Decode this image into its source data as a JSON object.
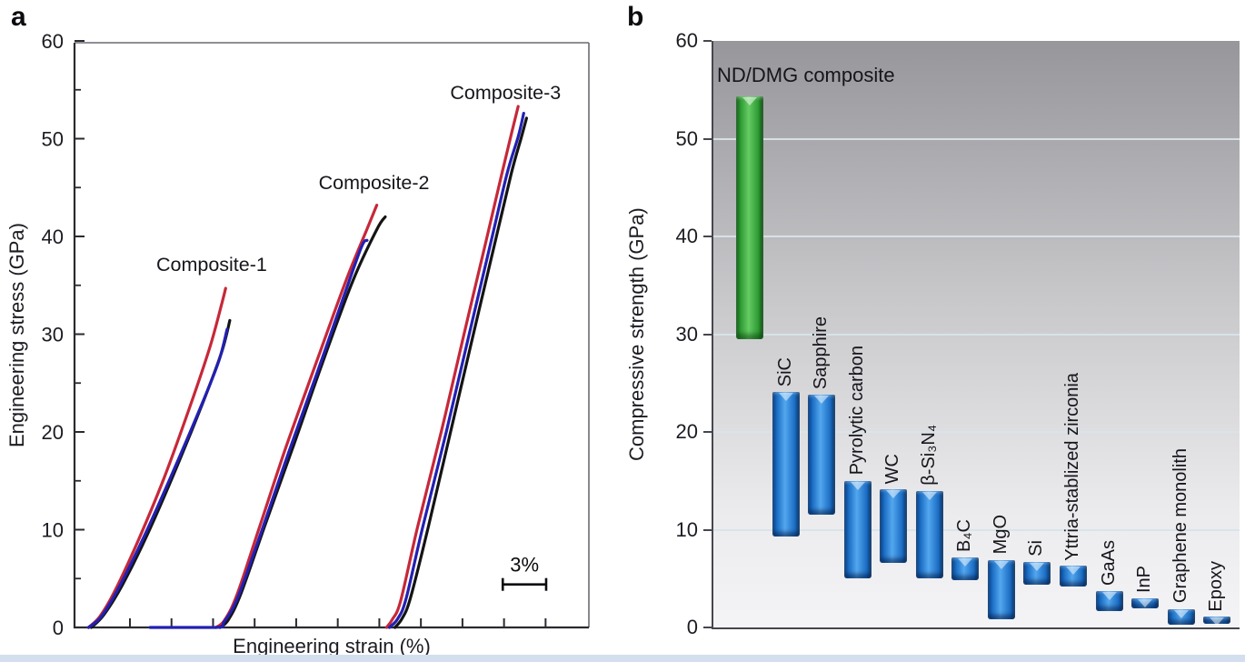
{
  "panels": {
    "a": {
      "letter": "a",
      "xlabel": "Engineering strain (%)",
      "ylabel": "Engineering stress (GPa)"
    },
    "b": {
      "letter": "b",
      "ylabel": "Compressive strength (GPa)"
    }
  },
  "colors": {
    "curve_red": "#c62839",
    "curve_blue": "#2320b2",
    "curve_black": "#141414",
    "axis_dark": "#2a2a30",
    "axis_gray": "#6a6a72",
    "text": "#1b1b22"
  },
  "chart_data": [
    {
      "id": "panel-a",
      "type": "line",
      "xlabel": "Engineering strain (%)",
      "ylabel": "Engineering stress (GPa)",
      "ylim": [
        0,
        60
      ],
      "yticks_major": [
        0,
        10,
        20,
        30,
        40,
        50,
        60
      ],
      "yticks_minor": [
        5,
        15,
        25,
        35,
        45,
        55
      ],
      "xlim": [
        0,
        36.7
      ],
      "xticks_unlabeled": [
        3.96,
        6.93,
        9.9,
        12.87,
        15.84,
        18.81,
        21.78,
        24.75,
        27.72,
        30.69,
        33.66
      ],
      "grid": false,
      "x_axis_note": "x ticks unlabeled; strain indicated by 3% scale bar; curve groups offset along x",
      "scalebar": {
        "label": "3%",
        "x_start": 30.6,
        "x_end": 33.7,
        "y": 4.4
      },
      "annotations": [
        {
          "text": "Composite-1",
          "x": 9.8,
          "y": 37.1
        },
        {
          "text": "Composite-2",
          "x": 21.4,
          "y": 45.5
        },
        {
          "text": "Composite-3",
          "x": 30.8,
          "y": 54.7
        }
      ],
      "series": [
        {
          "name": "composite-1-red",
          "group": "Composite-1",
          "color_key": "curve_red",
          "points": [
            [
              1.0,
              0
            ],
            [
              1.8,
              1.1
            ],
            [
              2.8,
              3.5
            ],
            [
              4.4,
              8.4
            ],
            [
              6.4,
              15.3
            ],
            [
              8.3,
              22.8
            ],
            [
              9.7,
              28.8
            ],
            [
              10.5,
              33.0
            ],
            [
              10.8,
              34.7
            ]
          ]
        },
        {
          "name": "composite-1-black",
          "group": "Composite-1",
          "color_key": "curve_black",
          "points": [
            [
              1.2,
              0
            ],
            [
              2.1,
              1.3
            ],
            [
              3.4,
              4.3
            ],
            [
              5.2,
              9.5
            ],
            [
              7.3,
              16.4
            ],
            [
              9.2,
              23.1
            ],
            [
              10.5,
              28.1
            ],
            [
              11.1,
              31.4
            ]
          ]
        },
        {
          "name": "composite-1-blue",
          "group": "Composite-1",
          "color_key": "curve_blue",
          "points": [
            [
              1.0,
              0
            ],
            [
              1.9,
              1.1
            ],
            [
              3.1,
              3.9
            ],
            [
              4.9,
              9.1
            ],
            [
              7.0,
              15.8
            ],
            [
              9.0,
              22.5
            ],
            [
              10.3,
              27.2
            ],
            [
              10.9,
              30.5
            ]
          ]
        },
        {
          "name": "composite-2-red",
          "group": "Composite-2",
          "color_key": "curve_red",
          "points": [
            [
              10.1,
              0
            ],
            [
              10.7,
              0.7
            ],
            [
              11.6,
              3.3
            ],
            [
              13.2,
              10.2
            ],
            [
              15.1,
              18.4
            ],
            [
              17.3,
              27.2
            ],
            [
              19.4,
              35.5
            ],
            [
              21.0,
              41.1
            ],
            [
              21.6,
              43.2
            ]
          ]
        },
        {
          "name": "composite-2-black",
          "group": "Composite-2",
          "color_key": "curve_black",
          "points": [
            [
              10.4,
              0
            ],
            [
              11.0,
              0.8
            ],
            [
              11.9,
              3.5
            ],
            [
              13.6,
              10.4
            ],
            [
              15.6,
              18.4
            ],
            [
              17.7,
              27.0
            ],
            [
              19.9,
              35.5
            ],
            [
              21.6,
              40.7
            ],
            [
              22.2,
              42.0
            ]
          ]
        },
        {
          "name": "composite-2-blue",
          "group": "Composite-2",
          "color_key": "curve_blue",
          "points": [
            [
              5.4,
              0
            ],
            [
              10.1,
              0
            ],
            [
              10.7,
              0.6
            ],
            [
              11.7,
              3.2
            ],
            [
              13.4,
              10.0
            ],
            [
              15.3,
              17.9
            ],
            [
              17.3,
              25.9
            ],
            [
              19.2,
              33.7
            ],
            [
              20.5,
              38.9
            ],
            [
              20.9,
              39.6
            ]
          ]
        },
        {
          "name": "composite-3-red",
          "group": "Composite-3",
          "color_key": "curve_red",
          "points": [
            [
              22.3,
              0
            ],
            [
              22.7,
              0.8
            ],
            [
              23.3,
              2.7
            ],
            [
              24.5,
              10.2
            ],
            [
              26.2,
              20.0
            ],
            [
              27.8,
              29.8
            ],
            [
              29.4,
              39.5
            ],
            [
              30.5,
              46.2
            ],
            [
              31.2,
              50.4
            ],
            [
              31.7,
              53.3
            ]
          ]
        },
        {
          "name": "composite-3-black",
          "group": "Composite-3",
          "color_key": "curve_black",
          "points": [
            [
              22.9,
              0
            ],
            [
              23.4,
              0.9
            ],
            [
              24.0,
              3.0
            ],
            [
              25.3,
              10.4
            ],
            [
              26.9,
              20.2
            ],
            [
              28.5,
              30.0
            ],
            [
              30.1,
              39.7
            ],
            [
              31.2,
              46.4
            ],
            [
              31.9,
              50.0
            ],
            [
              32.3,
              52.1
            ]
          ]
        },
        {
          "name": "composite-3-blue",
          "group": "Composite-3",
          "color_key": "curve_blue",
          "points": [
            [
              22.5,
              0
            ],
            [
              23.1,
              0.9
            ],
            [
              23.7,
              3.0
            ],
            [
              24.9,
              10.4
            ],
            [
              26.6,
              20.2
            ],
            [
              28.2,
              30.0
            ],
            [
              29.8,
              39.7
            ],
            [
              30.9,
              46.4
            ],
            [
              31.7,
              50.2
            ],
            [
              32.1,
              52.6
            ]
          ]
        }
      ]
    },
    {
      "id": "panel-b",
      "type": "bar",
      "subtype": "floating-range-bars",
      "ylabel": "Compressive strength (GPa)",
      "ylim": [
        0,
        60
      ],
      "yticks": [
        0,
        10,
        20,
        30,
        40,
        50,
        60
      ],
      "gridlines": [
        10,
        20,
        30,
        40,
        50
      ],
      "background": "vertical gray gradient, dark top to light bottom",
      "bars": [
        {
          "label": "ND/DMG composite",
          "low": 29.5,
          "high": 54.3,
          "style": "green",
          "label_placement": "top-horizontal"
        },
        {
          "label": "SiC",
          "low": 9.3,
          "high": 24.1,
          "style": "blue",
          "label_placement": "rotated"
        },
        {
          "label": "Sapphire",
          "low": 11.5,
          "high": 23.8,
          "style": "blue",
          "label_placement": "rotated"
        },
        {
          "label": "Pyrolytic carbon",
          "low": 5.0,
          "high": 15.0,
          "style": "blue",
          "label_placement": "rotated"
        },
        {
          "label": "WC",
          "low": 6.6,
          "high": 14.1,
          "style": "blue",
          "label_placement": "rotated"
        },
        {
          "label": "β-Si₃N₄",
          "low": 5.0,
          "high": 14.0,
          "style": "blue",
          "label_placement": "rotated"
        },
        {
          "label": "B₄C",
          "low": 4.8,
          "high": 7.2,
          "style": "blue",
          "label_placement": "rotated"
        },
        {
          "label": "MgO",
          "low": 0.8,
          "high": 6.9,
          "style": "blue",
          "label_placement": "rotated"
        },
        {
          "label": "Si",
          "low": 4.4,
          "high": 6.7,
          "style": "blue",
          "label_placement": "rotated"
        },
        {
          "label": "Yttria-stablized zirconia",
          "low": 4.2,
          "high": 6.3,
          "style": "blue",
          "label_placement": "rotated"
        },
        {
          "label": "GaAs",
          "low": 1.7,
          "high": 3.7,
          "style": "blue",
          "label_placement": "rotated"
        },
        {
          "label": "InP",
          "low": 2.0,
          "high": 3.0,
          "style": "blue",
          "label_placement": "rotated"
        },
        {
          "label": "Graphene monolith",
          "low": 0.3,
          "high": 1.9,
          "style": "blue",
          "label_placement": "rotated"
        },
        {
          "label": "Epoxy",
          "low": 0.4,
          "high": 1.1,
          "style": "blue",
          "label_placement": "rotated"
        }
      ]
    }
  ]
}
